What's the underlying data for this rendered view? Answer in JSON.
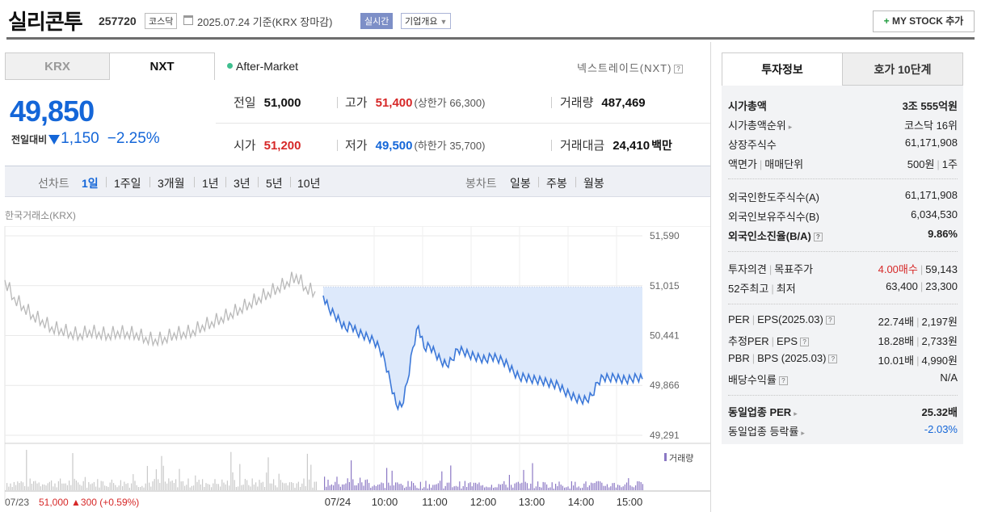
{
  "header": {
    "name": "실리콘투",
    "code": "257720",
    "market": "코스닥",
    "date": "2025.07.24  기준(KRX 장마감)",
    "realtime": "실시간",
    "corp_overview": "기업개요",
    "my_stock": "MY STOCK 추가"
  },
  "market_tabs": {
    "krx": "KRX",
    "nxt": "NXT",
    "session": "After-Market",
    "exchange_label": "넥스트레이드(NXT)"
  },
  "price": {
    "current": "49,850",
    "change_label": "전일대비",
    "change_value": "1,150",
    "change_pct": "−2.25%",
    "direction": "down"
  },
  "price_table": {
    "prev_close": {
      "label": "전일",
      "value": "51,000"
    },
    "high": {
      "label": "고가",
      "value": "51,400",
      "sub": "(상한가 66,300)"
    },
    "volume": {
      "label": "거래량",
      "value": "487,469"
    },
    "open": {
      "label": "시가",
      "value": "51,200"
    },
    "low": {
      "label": "저가",
      "value": "49,500",
      "sub": "(하한가 35,700)"
    },
    "amount": {
      "label": "거래대금",
      "value": "24,410",
      "unit": "백만"
    }
  },
  "period_bar": {
    "line_label": "선차트",
    "line_periods": [
      "1일",
      "1주일",
      "3개월",
      "1년",
      "3년",
      "5년",
      "10년"
    ],
    "active_period": "1일",
    "candle_label": "봉차트",
    "candle_periods": [
      "일봉",
      "주봉",
      "월봉"
    ]
  },
  "chart_data": {
    "type": "line",
    "source_label": "한국거래소(KRX)",
    "y_ticks": [
      "51,590",
      "51,015",
      "50,441",
      "49,866",
      "49,291"
    ],
    "y_tick_values": [
      51590,
      51015,
      50441,
      49866,
      49291
    ],
    "ylim": [
      49291,
      51590
    ],
    "reference_price": 51000,
    "volume_legend": "거래량",
    "x_labels": [
      "07/24",
      "10:00",
      "11:00",
      "12:00",
      "13:00",
      "14:00",
      "15:00"
    ],
    "prev_day_label": "07/23",
    "prev_day_summary": "51,000 ▲300 (+0.59%)",
    "prev_day": {
      "series_name": "07/23",
      "values": [
        51080,
        50880,
        50780,
        50680,
        50620,
        50540,
        50520,
        50480,
        50460,
        50500,
        50480,
        50460,
        50490,
        50480,
        50470,
        50420,
        50400,
        50420,
        50470,
        50480,
        50500,
        50560,
        50600,
        50650,
        50700,
        50760,
        50820,
        50880,
        50940,
        51000,
        51060,
        51140,
        51000,
        50950
      ]
    },
    "today": {
      "series_name": "07/24",
      "values": [
        50900,
        50750,
        50680,
        50600,
        50520,
        50560,
        50480,
        50450,
        50420,
        50380,
        50300,
        50150,
        49900,
        49650,
        49620,
        49900,
        50300,
        50550,
        50300,
        50320,
        50240,
        50150,
        50100,
        50160,
        50280,
        50260,
        50220,
        50200,
        50180,
        50160,
        50200,
        50180,
        50150,
        50100,
        50020,
        49960,
        49960,
        49940,
        49930,
        49920,
        49900,
        49880,
        49870,
        49800,
        49760,
        49720,
        49700,
        49700,
        49750,
        49900,
        49960,
        49950,
        49960,
        49940,
        49930,
        49940,
        49960,
        49940
      ]
    }
  },
  "right_tabs": {
    "invest": "투자정보",
    "hoga": "호가 10단계"
  },
  "invest_info": {
    "market_cap": {
      "label": "시가총액",
      "value": "3조 555억원"
    },
    "market_cap_rank": {
      "label": "시가총액순위",
      "value": "코스닥 16위"
    },
    "listed_shares": {
      "label": "상장주식수",
      "value": "61,171,908"
    },
    "face_value": {
      "label_a": "액면가",
      "label_b": "매매단위",
      "value_a": "500원",
      "value_b": "1주"
    },
    "foreign_limit": {
      "label": "외국인한도주식수(A)",
      "value": "61,171,908"
    },
    "foreign_hold": {
      "label": "외국인보유주식수(B)",
      "value": "6,034,530"
    },
    "foreign_ratio": {
      "label": "외국인소진율(B/A)",
      "value": "9.86%"
    },
    "opinion": {
      "label_a": "투자의견",
      "label_b": "목표주가",
      "value_a": "4.00매수",
      "value_b": "59,143"
    },
    "week52": {
      "label_a": "52주최고",
      "label_b": "최저",
      "value_a": "63,400",
      "value_b": "23,300"
    },
    "per_eps": {
      "label_a": "PER",
      "label_b": "EPS(2025.03)",
      "value_a": "22.74배",
      "value_b": "2,197원"
    },
    "est_per_eps": {
      "label_a": "추정PER",
      "label_b": "EPS",
      "value_a": "18.28배",
      "value_b": "2,733원"
    },
    "pbr_bps": {
      "label_a": "PBR",
      "label_b": "BPS (2025.03)",
      "value_a": "10.01배",
      "value_b": "4,990원"
    },
    "dividend": {
      "label": "배당수익률",
      "value": "N/A"
    },
    "sector_per": {
      "label": "동일업종 PER",
      "value": "25.32배"
    },
    "sector_rate": {
      "label": "동일업종 등락률",
      "value": "-2.03%"
    }
  },
  "colors": {
    "accent": "#1466d8",
    "up": "#d62828",
    "line": "#3c78d8",
    "fill": "#dde9fb",
    "prev_line": "#b9b9b9",
    "volume": "#8b78c4"
  }
}
